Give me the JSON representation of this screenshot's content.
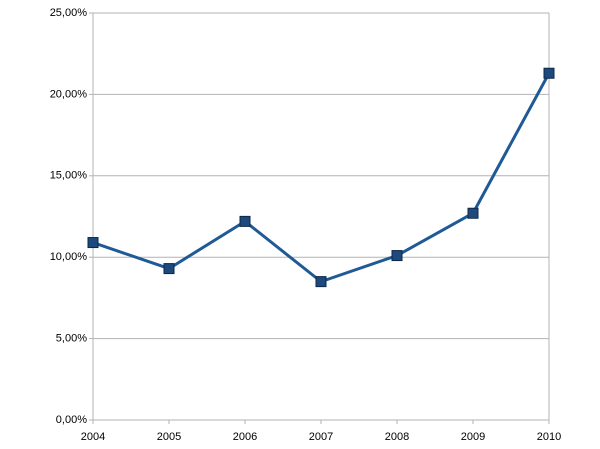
{
  "chart_data": {
    "type": "line",
    "x": [
      2004,
      2005,
      2006,
      2007,
      2008,
      2009,
      2010
    ],
    "values": [
      10.9,
      9.3,
      12.2,
      8.5,
      10.1,
      12.7,
      21.3
    ],
    "color": "#1f5a96",
    "marker_color": "#1c4a7e",
    "xlim": [
      2004,
      2010
    ],
    "xticks": [
      2004,
      2005,
      2006,
      2007,
      2008,
      2009,
      2010
    ],
    "ylim": [
      0,
      25
    ],
    "yticks": [
      {
        "value": 0,
        "label": "0,00%"
      },
      {
        "value": 5,
        "label": "5,00%"
      },
      {
        "value": 10,
        "label": "10,00%"
      },
      {
        "value": 15,
        "label": "15,00%"
      },
      {
        "value": 20,
        "label": "20,00%"
      },
      {
        "value": 25,
        "label": "25,00%"
      }
    ],
    "grid": true
  }
}
